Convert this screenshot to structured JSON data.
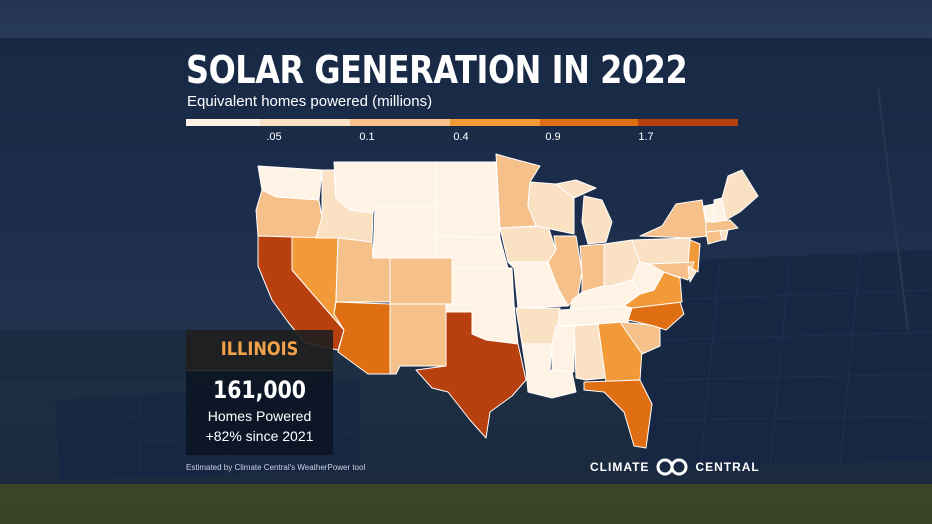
{
  "title": "SOLAR GENERATION IN 2022",
  "subtitle": "Equivalent homes powered (millions)",
  "legend": {
    "tick_labels": [
      ".05",
      "0.1",
      "0.4",
      "0.9",
      "1.7"
    ],
    "bins": [
      {
        "color": "#fff3e6"
      },
      {
        "color": "#fbe1c4"
      },
      {
        "color": "#f6c08a"
      },
      {
        "color": "#f39a38"
      },
      {
        "color": "#e06f14"
      },
      {
        "color": "#b83f0e"
      }
    ]
  },
  "callout": {
    "state": "ILLINOIS",
    "value": "161,000",
    "label": "Homes Powered",
    "change": "+82% since 2021"
  },
  "footnote": "Estimated by Climate Central's WeatherPower tool",
  "brand": {
    "left": "CLIMATE",
    "right": "CENTRAL"
  },
  "map": {
    "states": [
      {
        "name": "CA",
        "bin": 5
      },
      {
        "name": "TX",
        "bin": 5
      },
      {
        "name": "FL",
        "bin": 4
      },
      {
        "name": "NV",
        "bin": 3
      },
      {
        "name": "AZ",
        "bin": 4
      },
      {
        "name": "NC",
        "bin": 4
      },
      {
        "name": "GA",
        "bin": 3
      },
      {
        "name": "VA",
        "bin": 3
      },
      {
        "name": "NJ",
        "bin": 3
      },
      {
        "name": "UT",
        "bin": 2
      },
      {
        "name": "CO",
        "bin": 2
      },
      {
        "name": "NM",
        "bin": 2
      },
      {
        "name": "OR",
        "bin": 2
      },
      {
        "name": "NY",
        "bin": 2
      },
      {
        "name": "MN",
        "bin": 2
      },
      {
        "name": "MA",
        "bin": 2
      },
      {
        "name": "SC",
        "bin": 2
      },
      {
        "name": "IN",
        "bin": 2
      },
      {
        "name": "IL",
        "bin": 2
      },
      {
        "name": "ID",
        "bin": 1
      },
      {
        "name": "IA",
        "bin": 1
      },
      {
        "name": "WI",
        "bin": 1
      },
      {
        "name": "MI",
        "bin": 1
      },
      {
        "name": "OH",
        "bin": 1
      },
      {
        "name": "PA",
        "bin": 1
      },
      {
        "name": "AR",
        "bin": 1
      },
      {
        "name": "AL",
        "bin": 1
      },
      {
        "name": "MD",
        "bin": 2
      },
      {
        "name": "CT",
        "bin": 2
      },
      {
        "name": "WA",
        "bin": 0
      },
      {
        "name": "MT",
        "bin": 0
      },
      {
        "name": "WY",
        "bin": 0
      },
      {
        "name": "ND",
        "bin": 0
      },
      {
        "name": "SD",
        "bin": 0
      },
      {
        "name": "NE",
        "bin": 0
      },
      {
        "name": "KS",
        "bin": 0
      },
      {
        "name": "OK",
        "bin": 0
      },
      {
        "name": "MO",
        "bin": 0
      },
      {
        "name": "LA",
        "bin": 0
      },
      {
        "name": "MS",
        "bin": 0
      },
      {
        "name": "TN",
        "bin": 0
      },
      {
        "name": "KY",
        "bin": 0
      },
      {
        "name": "WV",
        "bin": 0
      },
      {
        "name": "ME",
        "bin": 1
      },
      {
        "name": "VT",
        "bin": 0
      },
      {
        "name": "NH",
        "bin": 0
      },
      {
        "name": "DE",
        "bin": 1
      },
      {
        "name": "RI",
        "bin": 1
      }
    ]
  }
}
